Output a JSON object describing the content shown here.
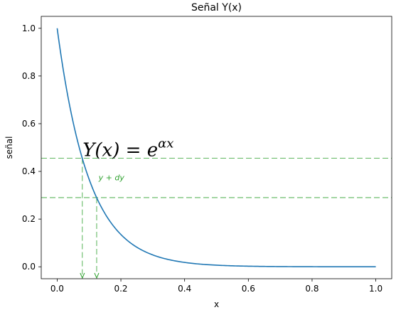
{
  "chart_data": {
    "type": "line",
    "title": "Señal Y(x)",
    "xlabel": "x",
    "ylabel": "señal",
    "xlim": [
      -0.05,
      1.05
    ],
    "ylim": [
      -0.05,
      1.05
    ],
    "xticks": [
      0.0,
      0.2,
      0.4,
      0.6,
      0.8,
      1.0
    ],
    "xtick_labels": [
      "0.0",
      "0.2",
      "0.4",
      "0.6",
      "0.8",
      "1.0"
    ],
    "yticks": [
      0.0,
      0.2,
      0.4,
      0.6,
      0.8,
      1.0
    ],
    "ytick_labels": [
      "0.0",
      "0.2",
      "0.4",
      "0.6",
      "0.8",
      "1.0"
    ],
    "grid": false,
    "series": [
      {
        "function": "exp(-10x)",
        "alpha": -10,
        "x_range": [
          0,
          1
        ],
        "color": "#1f77b4"
      }
    ],
    "formula": {
      "lhs": "Y(x) = ",
      "base": "e",
      "exponent": "αx",
      "x": 0.08,
      "y": 0.5
    },
    "reference_lines": {
      "color": "#2ca02c",
      "horizontal_y": [
        0.455,
        0.29
      ],
      "vertical_x": [
        0.079,
        0.124
      ]
    },
    "annotation": {
      "text": "y + dy",
      "x": 0.13,
      "y": 0.375,
      "color": "#2ca02c"
    }
  }
}
